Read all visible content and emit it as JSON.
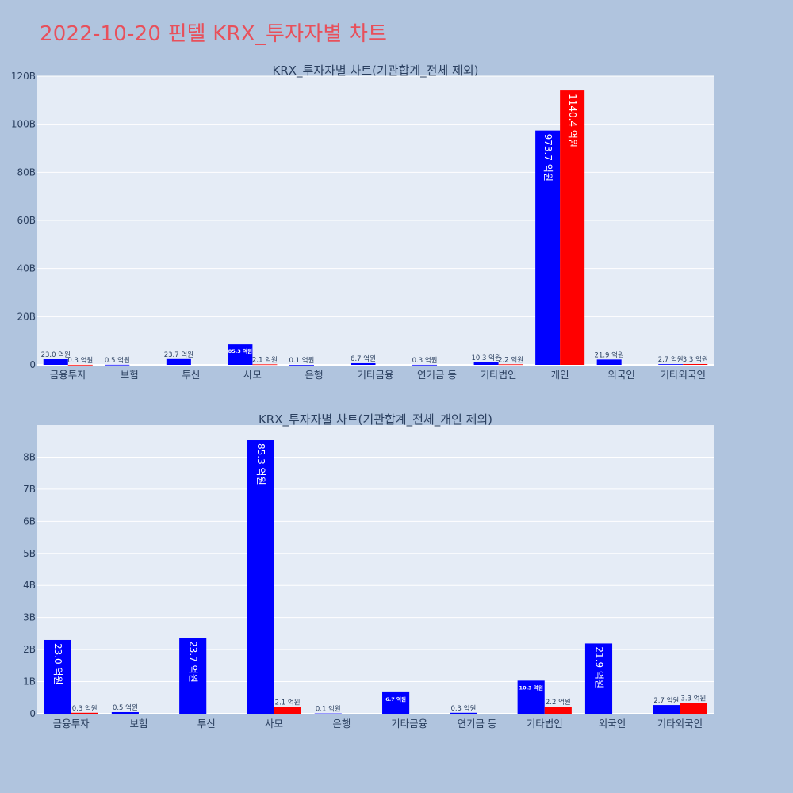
{
  "page": {
    "title": "2022-10-20 핀텔 KRX_투자자별 차트"
  },
  "colors": {
    "buy": "#0000ff",
    "sell": "#ff0000",
    "plot_bg": "#e5ecf6",
    "page_bg": "#b0c4de",
    "title": "#e8505b",
    "grid": "#ffffff",
    "text": "#2a3f5f"
  },
  "chart_data": [
    {
      "type": "bar",
      "title": "KRX_투자자별 차트(기관합계_전체 제외)",
      "categories": [
        "금융투자",
        "보험",
        "투신",
        "사모",
        "은행",
        "기타금융",
        "연기금 등",
        "기타법인",
        "개인",
        "외국인",
        "기타외국인"
      ],
      "series": [
        {
          "color": "buy",
          "values": [
            2.3,
            0.05,
            2.37,
            8.53,
            0.01,
            0.67,
            0.03,
            1.03,
            97.37,
            2.19,
            0.27
          ],
          "labels": [
            "23.0 억원",
            "0.5 억원",
            "23.7 억원",
            "85.3 억원",
            "0.1 억원",
            "6.7 억원",
            "0.3 억원",
            "10.3 억원",
            "973.7 억원",
            "21.9 억원",
            "2.7 억원"
          ]
        },
        {
          "color": "sell",
          "values": [
            0.03,
            null,
            null,
            0.21,
            null,
            null,
            null,
            0.22,
            114.04,
            null,
            0.33
          ],
          "labels": [
            "0.3 억원",
            "",
            "",
            "2.1 억원",
            "",
            "",
            "",
            "2.2 억원",
            "1140.4 억원",
            "",
            "3.3 억원"
          ]
        }
      ],
      "ylim": [
        0,
        120
      ],
      "yticks": [
        0,
        20,
        40,
        60,
        80,
        100,
        120
      ],
      "ytick_labels": [
        "0",
        "20B",
        "40B",
        "60B",
        "80B",
        "100B",
        "120B"
      ],
      "grid": true
    },
    {
      "type": "bar",
      "title": "KRX_투자자별 차트(기관합계_전체_개인 제외)",
      "categories": [
        "금융투자",
        "보험",
        "투신",
        "사모",
        "은행",
        "기타금융",
        "연기금 등",
        "기타법인",
        "외국인",
        "기타외국인"
      ],
      "series": [
        {
          "color": "buy",
          "values": [
            2.3,
            0.05,
            2.37,
            8.53,
            0.01,
            0.67,
            0.03,
            1.03,
            2.19,
            0.27
          ],
          "labels": [
            "23.0 억원",
            "0.5 억원",
            "23.7 억원",
            "85.3 억원",
            "0.1 억원",
            "6.7 억원",
            "0.3 억원",
            "10.3 억원",
            "21.9 억원",
            "2.7 억원"
          ]
        },
        {
          "color": "sell",
          "values": [
            0.03,
            null,
            null,
            0.21,
            null,
            null,
            null,
            0.22,
            null,
            0.33
          ],
          "labels": [
            "0.3 억원",
            "",
            "",
            "2.1 억원",
            "",
            "",
            "",
            "2.2 억원",
            "",
            "3.3 억원"
          ]
        }
      ],
      "ylim": [
        0,
        9
      ],
      "yticks": [
        0,
        1,
        2,
        3,
        4,
        5,
        6,
        7,
        8
      ],
      "ytick_labels": [
        "0",
        "1B",
        "2B",
        "3B",
        "4B",
        "5B",
        "6B",
        "7B",
        "8B"
      ],
      "grid": true
    }
  ]
}
